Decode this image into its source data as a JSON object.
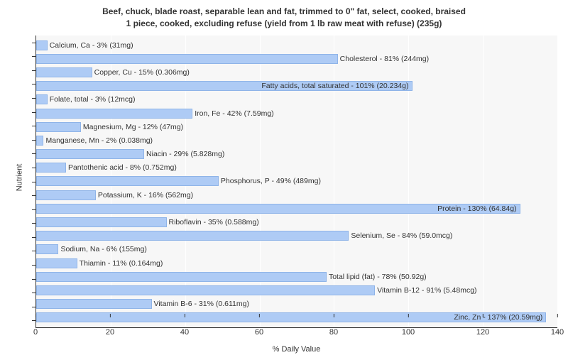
{
  "title_line1": "Beef, chuck, blade roast, separable lean and fat, trimmed to 0\" fat, select, cooked, braised",
  "title_line2": "1 piece, cooked, excluding refuse (yield from 1 lb raw meat with refuse) (235g)",
  "xlabel": "% Daily Value",
  "ylabel": "Nutrient",
  "chart": {
    "type": "bar-horizontal",
    "xmin": 0,
    "xmax": 140,
    "xtick_step": 20,
    "bar_color": "#aecbf5",
    "bar_border_color": "#8fb4e8",
    "background_color": "#f7f7f7",
    "grid_color": "#ffffff",
    "title_fontsize": 12,
    "label_fontsize": 11,
    "bar_label_fontsize": 10.5,
    "xticks": [
      0,
      20,
      40,
      60,
      80,
      100,
      120,
      140
    ],
    "nutrients": [
      {
        "label": "Calcium, Ca - 3% (31mg)",
        "value": 3
      },
      {
        "label": "Cholesterol - 81% (244mg)",
        "value": 81
      },
      {
        "label": "Copper, Cu - 15% (0.306mg)",
        "value": 15
      },
      {
        "label": "Fatty acids, total saturated - 101% (20.234g)",
        "value": 101,
        "inside": true
      },
      {
        "label": "Folate, total - 3% (12mcg)",
        "value": 3
      },
      {
        "label": "Iron, Fe - 42% (7.59mg)",
        "value": 42
      },
      {
        "label": "Magnesium, Mg - 12% (47mg)",
        "value": 12
      },
      {
        "label": "Manganese, Mn - 2% (0.038mg)",
        "value": 2
      },
      {
        "label": "Niacin - 29% (5.828mg)",
        "value": 29
      },
      {
        "label": "Pantothenic acid - 8% (0.752mg)",
        "value": 8
      },
      {
        "label": "Phosphorus, P - 49% (489mg)",
        "value": 49
      },
      {
        "label": "Potassium, K - 16% (562mg)",
        "value": 16
      },
      {
        "label": "Protein - 130% (64.84g)",
        "value": 130,
        "inside": true
      },
      {
        "label": "Riboflavin - 35% (0.588mg)",
        "value": 35
      },
      {
        "label": "Selenium, Se - 84% (59.0mcg)",
        "value": 84
      },
      {
        "label": "Sodium, Na - 6% (155mg)",
        "value": 6
      },
      {
        "label": "Thiamin - 11% (0.164mg)",
        "value": 11
      },
      {
        "label": "Total lipid (fat) - 78% (50.92g)",
        "value": 78
      },
      {
        "label": "Vitamin B-12 - 91% (5.48mcg)",
        "value": 91
      },
      {
        "label": "Vitamin B-6 - 31% (0.611mg)",
        "value": 31
      },
      {
        "label": "Zinc, Zn - 137% (20.59mg)",
        "value": 137,
        "inside": true
      }
    ]
  }
}
